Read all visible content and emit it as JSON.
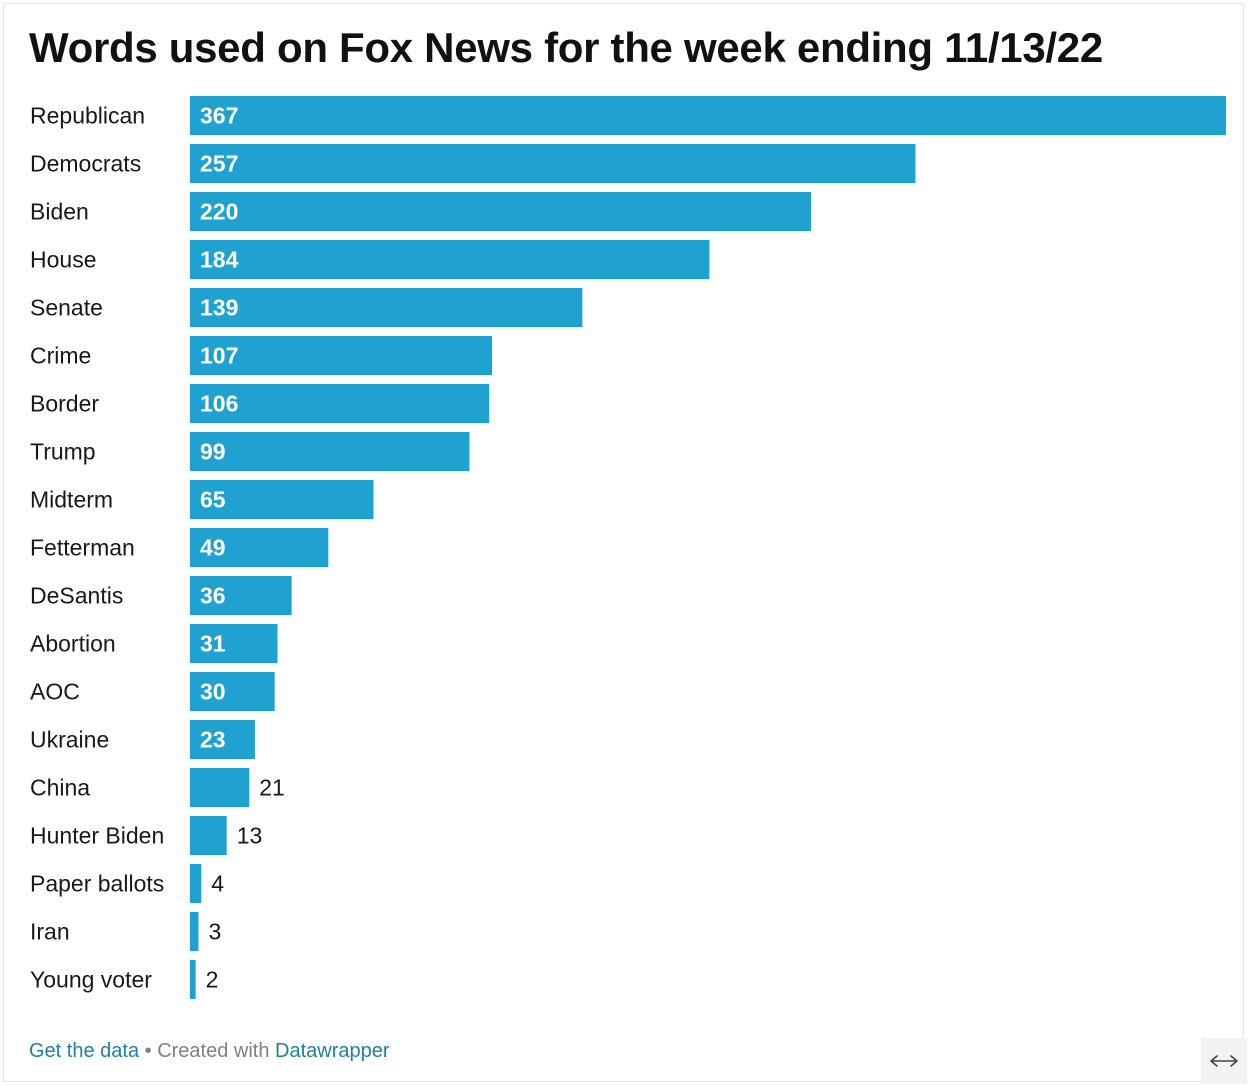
{
  "chart_data": {
    "type": "bar",
    "orientation": "horizontal",
    "title": "Words used on Fox News for the week ending 11/13/22",
    "categories": [
      "Republican",
      "Democrats",
      "Biden",
      "House",
      "Senate",
      "Crime",
      "Border",
      "Trump",
      "Midterm",
      "Fetterman",
      "DeSantis",
      "Abortion",
      "AOC",
      "Ukraine",
      "China",
      "Hunter Biden",
      "Paper ballots",
      "Iran",
      "Young voter"
    ],
    "values": [
      367,
      257,
      220,
      184,
      139,
      107,
      106,
      99,
      65,
      49,
      36,
      31,
      30,
      23,
      21,
      13,
      4,
      3,
      2
    ],
    "xlim": [
      0,
      367
    ],
    "grid": false,
    "legend": "none",
    "bar_color": "#1fa2cf",
    "label_inside_color": "#ffffff",
    "label_outside_color": "#181818"
  },
  "footer": {
    "get_data_label": "Get the data",
    "separator": " • Created with ",
    "tool_label": "Datawrapper",
    "link_color": "#1d81a2"
  },
  "expand_button": {
    "icon": "expand-horizontal-icon"
  }
}
